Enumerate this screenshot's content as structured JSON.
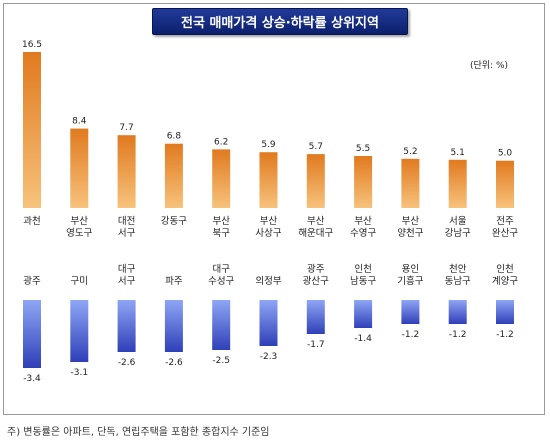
{
  "title": "전국 매매가격 상승·하락률 상위지역",
  "unit": "(단위: %)",
  "footnote": "주) 변동률은 아파트, 단독, 연립주택을 포함한 종합지수 기준임",
  "colors": {
    "rise_top": "#e07a1f",
    "rise_bottom": "#f7c27c",
    "fall_top": "#8fa6f5",
    "fall_bottom": "#2f3fb8",
    "title_bg": "#15287a"
  },
  "chart_data": [
    {
      "type": "bar",
      "name": "상승",
      "categories": [
        [
          "과천"
        ],
        [
          "부산",
          "영도구"
        ],
        [
          "대전",
          "서구"
        ],
        [
          "강동구"
        ],
        [
          "부산",
          "북구"
        ],
        [
          "부산",
          "사상구"
        ],
        [
          "부산",
          "해운대구"
        ],
        [
          "부산",
          "수영구"
        ],
        [
          "부산",
          "양천구"
        ],
        [
          "서울",
          "강남구"
        ],
        [
          "전주",
          "완산구"
        ]
      ],
      "values": [
        16.5,
        8.4,
        7.7,
        6.8,
        6.2,
        5.9,
        5.7,
        5.5,
        5.2,
        5.1,
        5.0
      ],
      "value_labels": [
        "16.5",
        "8.4",
        "7.7",
        "6.8",
        "6.2",
        "5.9",
        "5.7",
        "5.5",
        "5.2",
        "5.1",
        "5.0"
      ]
    },
    {
      "type": "bar",
      "name": "하락",
      "categories": [
        [
          "광주"
        ],
        [
          "구미"
        ],
        [
          "대구",
          "서구"
        ],
        [
          "파주"
        ],
        [
          "대구",
          "수성구"
        ],
        [
          "의정부"
        ],
        [
          "광주",
          "광산구"
        ],
        [
          "인천",
          "남동구"
        ],
        [
          "용인",
          "기흥구"
        ],
        [
          "천안",
          "동남구"
        ],
        [
          "인천",
          "계양구"
        ]
      ],
      "values": [
        -3.4,
        -3.1,
        -2.6,
        -2.6,
        -2.5,
        -2.3,
        -1.7,
        -1.4,
        -1.2,
        -1.2,
        -1.2
      ],
      "value_labels": [
        "-3.4",
        "-3.1",
        "-2.6",
        "-2.6",
        "-2.5",
        "-2.3",
        "-1.7",
        "-1.4",
        "-1.2",
        "-1.2",
        "-1.2"
      ]
    }
  ]
}
